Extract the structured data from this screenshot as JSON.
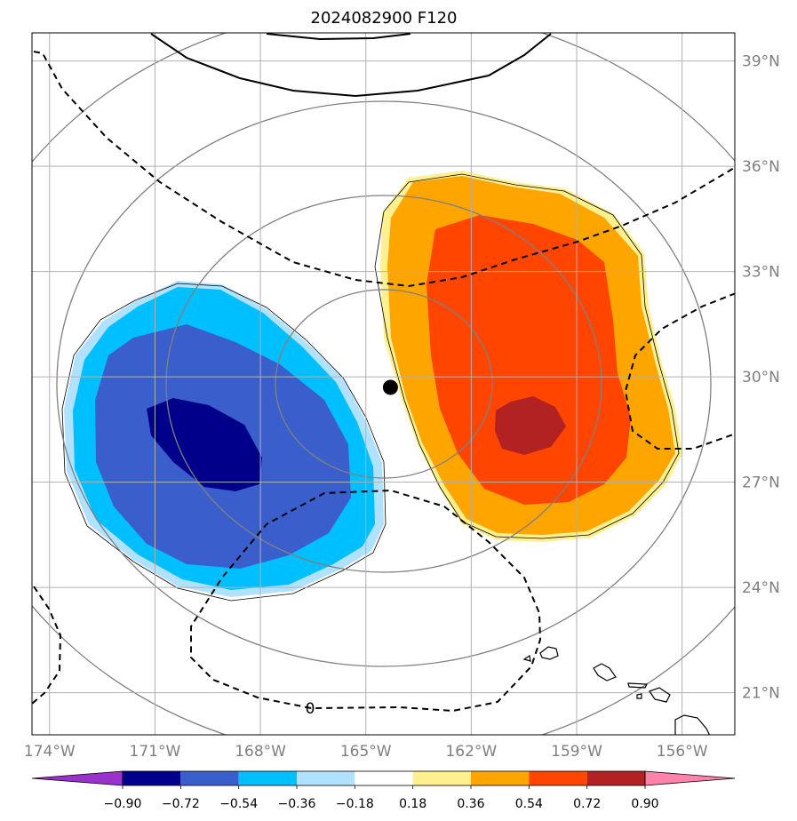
{
  "chart_data": {
    "type": "heatmap",
    "title": "2024082900 F120",
    "map": {
      "lon_range": [
        -174.5,
        -154.5
      ],
      "lat_range": [
        19.8,
        39.8
      ],
      "lat_ticks": [
        {
          "value": 39,
          "label": "39°N"
        },
        {
          "value": 36,
          "label": "36°N"
        },
        {
          "value": 33,
          "label": "33°N"
        },
        {
          "value": 30,
          "label": "30°N"
        },
        {
          "value": 27,
          "label": "27°N"
        },
        {
          "value": 24,
          "label": "24°N"
        },
        {
          "value": 21,
          "label": "21°N"
        }
      ],
      "lon_ticks": [
        {
          "value": -174,
          "label": "174°W"
        },
        {
          "value": -171,
          "label": "171°W"
        },
        {
          "value": -168,
          "label": "168°W"
        },
        {
          "value": -165,
          "label": "165°W"
        },
        {
          "value": -162,
          "label": "162°W"
        },
        {
          "value": -159,
          "label": "159°W"
        },
        {
          "value": -156,
          "label": "156°W"
        }
      ],
      "grid": true,
      "center_marker": {
        "lon": -164.3,
        "lat": 29.7
      },
      "contour_label": "0"
    },
    "colorbar": {
      "levels": [
        "−0.90",
        "−0.72",
        "−0.54",
        "−0.36",
        "−0.18",
        "0.18",
        "0.36",
        "0.54",
        "0.72",
        "0.90"
      ],
      "colors": [
        "#9932cc",
        "#00008b",
        "#3a5fcd",
        "#00bfff",
        "#b0e2ff",
        "#ffffff",
        "#fff08f",
        "#ffa500",
        "#ff4500",
        "#b22222",
        "#ff82ab"
      ],
      "extend": "both"
    },
    "fields": [
      {
        "sign": "negative",
        "peak_level": "−0.72"
      },
      {
        "sign": "positive",
        "peak_level": "0.72"
      }
    ]
  }
}
